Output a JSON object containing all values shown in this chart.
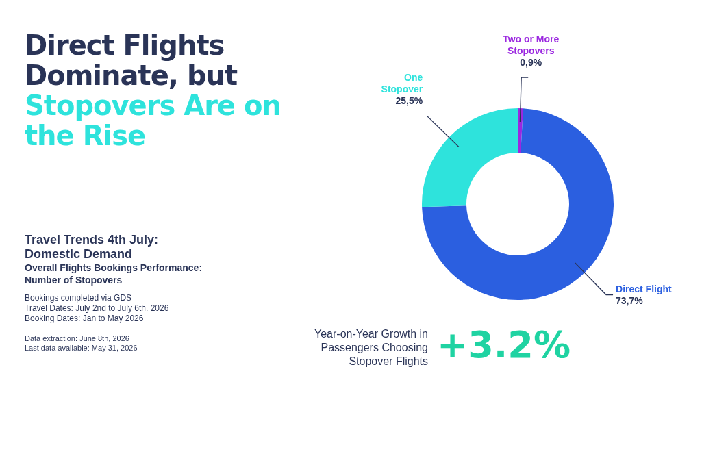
{
  "chart_data": {
    "type": "donut",
    "title": "Direct Flights Dominate, but",
    "subtitle": "Stopovers Are on the Rise",
    "categories": [
      "Two or More Stopovers",
      "Direct Flight",
      "One Stopover"
    ],
    "values": [
      0.9,
      73.7,
      25.5
    ],
    "colors": [
      "#9b28e0",
      "#2b5fe0",
      "#2ee3dc"
    ],
    "value_labels": [
      "0,9%",
      "73,7%",
      "25,5%"
    ],
    "legend": false,
    "annotations": [
      "Travel Trends 4th July: Domestic Demand",
      "Overall Flights Bookings Performance: Number of Stopovers",
      "Bookings completed via GDS",
      "Travel Dates: July 2nd to July 6th. 2026",
      "Booking Dates: Jan to May 2026",
      "Data extraction: June 8th, 2026",
      "Last data available: May 31, 2026",
      "Year-on-Year Growth in Passengers Choosing Stopover Flights",
      "+3.2%"
    ]
  }
}
